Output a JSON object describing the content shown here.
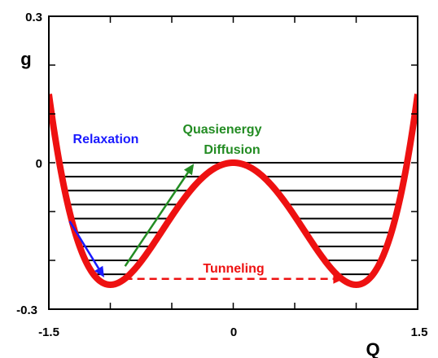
{
  "chart_data": {
    "type": "line",
    "xlabel": "Q",
    "ylabel": "g",
    "xlim": [
      -1.5,
      1.5
    ],
    "ylim": [
      -0.3,
      0.3
    ],
    "x_ticks": [
      "-1.5",
      "0",
      "1.5"
    ],
    "y_ticks": [
      "0.3",
      "0",
      "-0.3"
    ],
    "grid": false,
    "series": [
      {
        "color": "#ee1111",
        "equation": "g = Q^4/4 - Q^2/2",
        "x": [
          -1.5,
          -1.4,
          -1.3,
          -1.2,
          -1.1,
          -1.0,
          -0.9,
          -0.8,
          -0.7,
          -0.6,
          -0.5,
          -0.4,
          -0.3,
          -0.2,
          -0.1,
          0,
          0.1,
          0.2,
          0.3,
          0.4,
          0.5,
          0.6,
          0.7,
          0.8,
          0.9,
          1.0,
          1.1,
          1.2,
          1.3,
          1.4,
          1.5
        ],
        "y": [
          0.141,
          -0.02,
          -0.131,
          -0.202,
          -0.239,
          -0.25,
          -0.241,
          -0.218,
          -0.185,
          -0.148,
          -0.109,
          -0.074,
          -0.043,
          -0.02,
          -0.005,
          0,
          -0.005,
          -0.02,
          -0.043,
          -0.074,
          -0.109,
          -0.148,
          -0.185,
          -0.218,
          -0.241,
          -0.25,
          -0.239,
          -0.202,
          -0.131,
          -0.02,
          0.141
        ]
      }
    ],
    "energy_levels": [
      0,
      -0.0286,
      -0.0571,
      -0.0857,
      -0.1143,
      -0.1429,
      -0.1714,
      -0.2,
      -0.2286
    ],
    "annotations": [
      {
        "text": "Relaxation",
        "color": "#1a1aff"
      },
      {
        "text": "Quasienergy",
        "color": "#238c23"
      },
      {
        "text": "Diffusion",
        "color": "#238c23"
      },
      {
        "text": "Tunneling",
        "color": "#ee1111"
      }
    ],
    "arrows": [
      {
        "name": "relaxation",
        "from": [
          -1.33,
          -0.12
        ],
        "to": [
          -1.05,
          -0.235
        ],
        "color": "#1a1aff",
        "style": "solid"
      },
      {
        "name": "quasienergy-diffusion",
        "from": [
          -0.88,
          -0.212
        ],
        "to": [
          -0.32,
          -0.002
        ],
        "color": "#238c23",
        "style": "solid"
      },
      {
        "name": "tunneling",
        "from": [
          -0.88,
          -0.238
        ],
        "to": [
          0.9,
          -0.238
        ],
        "color": "#ee1111",
        "style": "dashed"
      }
    ]
  }
}
